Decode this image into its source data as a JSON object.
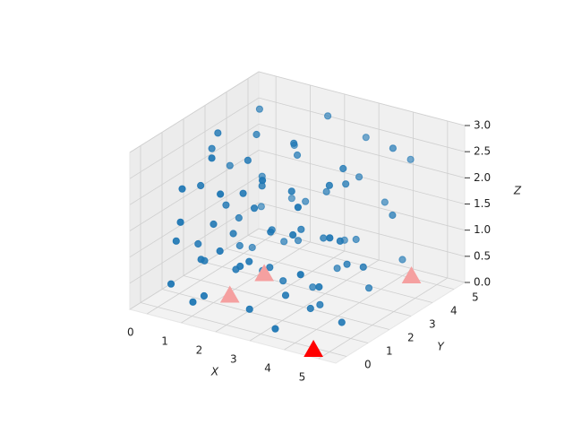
{
  "chart_data": {
    "type": "scatter3d",
    "x_label": "X",
    "y_label": "Y",
    "z_label": "Z",
    "xlim": [
      -0.5,
      5.5
    ],
    "ylim": [
      -0.5,
      5.5
    ],
    "zlim": [
      0,
      3
    ],
    "xticks": [
      0,
      1,
      2,
      3,
      4,
      5
    ],
    "yticks": [
      0,
      1,
      2,
      3,
      4,
      5
    ],
    "zticks": [
      {
        "value": 0,
        "label": "0.0"
      },
      {
        "value": 0.5,
        "label": "0.5"
      },
      {
        "value": 1,
        "label": "1.0"
      },
      {
        "value": 1.5,
        "label": "1.5"
      },
      {
        "value": 2,
        "label": "2.0"
      },
      {
        "value": 2.5,
        "label": "2.5"
      },
      {
        "value": 3,
        "label": "3.0"
      }
    ],
    "grid": true,
    "series": [
      {
        "marker": "circle",
        "color": "#1f77b4",
        "x": [
          0.2,
          0.5,
          1.1,
          0.8,
          2.3,
          3.1,
          1.5,
          0.1,
          4.2,
          2.8,
          1.9,
          0.4,
          3.6,
          4.8,
          2.2,
          1.0,
          3.3,
          0.7,
          2.0,
          4.5,
          1.3,
          3.9,
          0.3,
          2.6,
          4.9,
          1.7,
          0.9,
          3.0,
          4.1,
          2.4,
          0.6,
          1.4,
          2.9,
          3.7,
          0.2,
          1.8,
          4.4,
          2.1,
          0.5,
          3.4,
          1.2,
          4.7,
          2.7,
          0.8,
          3.8,
          1.6,
          4.0,
          0.1,
          2.5,
          3.5,
          1.0,
          4.6,
          0.4,
          2.2,
          1.9,
          3.2,
          0.7,
          4.3,
          2.8,
          1.1,
          0.3,
          3.6,
          1.5,
          2.0,
          4.8,
          0.6,
          3.1,
          1.8,
          0.9,
          2.4,
          4.2,
          1.3,
          0.2,
          3.9,
          2.6,
          1.7,
          4.5,
          0.5,
          3.3,
          1.2
        ],
        "y": [
          0.3,
          1.2,
          0.4,
          2.5,
          0.6,
          1.0,
          1.8,
          3.2,
          0.8,
          2.2,
          3.5,
          4.1,
          3.0,
          1.9,
          4.4,
          1.0,
          0.2,
          0.9,
          1.3,
          4.2,
          2.8,
          2.4,
          1.7,
          3.7,
          3.1,
          0.2,
          4.8,
          4.9,
          0.1,
          2.0,
          0.1,
          1.4,
          1.6,
          1.2,
          2.2,
          4.0,
          2.8,
          0.9,
          3.6,
          3.8,
          0.6,
          0.5,
          2.9,
          1.9,
          4.5,
          2.3,
          1.6,
          0.7,
          4.7,
          0.7,
          3.0,
          3.6,
          0.5,
          1.7,
          0.8,
          2.6,
          2.7,
          4.9,
          0.4,
          4.6,
          1.4,
          1.8,
          0.5,
          3.3,
          0.9,
          3.9,
          3.4,
          1.1,
          0.2,
          2.5,
          2.1,
          3.8,
          4.5,
          0.3,
          1.1,
          2.6,
          1.3,
          2.0,
          4.1,
          1.6
        ],
        "z": [
          0.4,
          2.1,
          0.3,
          1.2,
          0.2,
          0.5,
          2.6,
          1.9,
          0.9,
          1.4,
          0.7,
          2.8,
          2.2,
          1.1,
          2.9,
          1.5,
          0.1,
          0.8,
          1.9,
          0.6,
          0.2,
          2.7,
          0.5,
          1.7,
          1.8,
          2.4,
          1.0,
          2.5,
          1.3,
          0.4,
          1.7,
          0.6,
          2.3,
          0.3,
          2.5,
          1.3,
          0.4,
          1.0,
          0.3,
          0.9,
          2.9,
          2.0,
          0.1,
          1.6,
          1.5,
          2.0,
          2.6,
          1.1,
          0.5,
          1.8,
          2.7,
          2.9,
          2.2,
          0.7,
          0.9,
          1.2,
          0.6,
          2.3,
          2.8,
          2.1,
          0.9,
          0.2,
          1.2,
          2.4,
          0.3,
          1.6,
          0.4,
          2.2,
          0.2,
          2.9,
          1.0,
          0.5,
          0.8,
          2.5,
          1.6,
          1.1,
          1.7,
          2.9,
          2.0,
          1.2
        ]
      },
      {
        "marker": "triangle",
        "color": "#ff0000",
        "x": [
          4.6
        ],
        "y": [
          -0.1
        ],
        "z": [
          0
        ]
      },
      {
        "marker": "triangle",
        "color": "#f5a0a0",
        "x": [
          1.1,
          1.1,
          4.2
        ],
        "y": [
          1.6,
          3.2,
          5.1
        ],
        "z": [
          0,
          0,
          0
        ]
      }
    ]
  }
}
